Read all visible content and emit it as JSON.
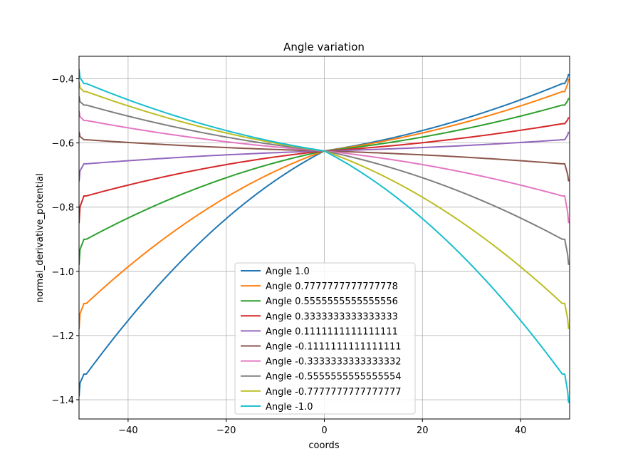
{
  "chart_data": {
    "type": "line",
    "title": "Angle variation",
    "xlabel": "coords",
    "ylabel": "normal_derivative_potential",
    "xlim": [
      -50,
      50
    ],
    "ylim": [
      -1.46,
      -0.33
    ],
    "xticks": [
      -40,
      -20,
      0,
      20,
      40
    ],
    "xtick_labels": [
      "−40",
      "−20",
      "0",
      "20",
      "40"
    ],
    "yticks": [
      -1.4,
      -1.2,
      -1.0,
      -0.8,
      -0.6,
      -0.4
    ],
    "ytick_labels": [
      "−1.4",
      "−1.2",
      "−1.0",
      "−0.8",
      "−0.6",
      "−0.4"
    ],
    "grid": true,
    "legend_position": "lower-center",
    "center": [
      0,
      -0.625
    ],
    "series": [
      {
        "name": "Angle 1.0",
        "color": "#1f77b4",
        "left_plateau": -1.32,
        "right_plateau": -0.415,
        "left_spike": -1.39,
        "right_spike": -0.385
      },
      {
        "name": "Angle 0.7777777777777778",
        "color": "#ff7f0e",
        "left_plateau": -1.1,
        "right_plateau": -0.44,
        "left_spike": -1.18,
        "right_spike": -0.4
      },
      {
        "name": "Angle 0.5555555555555556",
        "color": "#2ca02c",
        "left_plateau": -0.9,
        "right_plateau": -0.482,
        "left_spike": -0.98,
        "right_spike": -0.46
      },
      {
        "name": "Angle 0.3333333333333333",
        "color": "#d62728",
        "left_plateau": -0.765,
        "right_plateau": -0.54,
        "left_spike": -0.85,
        "right_spike": -0.52
      },
      {
        "name": "Angle 0.1111111111111111",
        "color": "#9467bd",
        "left_plateau": -0.665,
        "right_plateau": -0.59,
        "left_spike": -0.72,
        "right_spike": -0.565
      },
      {
        "name": "Angle -0.1111111111111111",
        "color": "#8c564b",
        "left_plateau": -0.59,
        "right_plateau": -0.665,
        "left_spike": -0.565,
        "right_spike": -0.72
      },
      {
        "name": "Angle -0.3333333333333332",
        "color": "#e377c2",
        "left_plateau": -0.53,
        "right_plateau": -0.765,
        "left_spike": -0.5,
        "right_spike": -0.85
      },
      {
        "name": "Angle -0.5555555555555554",
        "color": "#7f7f7f",
        "left_plateau": -0.482,
        "right_plateau": -0.9,
        "left_spike": -0.455,
        "right_spike": -0.98
      },
      {
        "name": "Angle -0.7777777777777777",
        "color": "#bcbd22",
        "left_plateau": -0.44,
        "right_plateau": -1.1,
        "left_spike": -0.41,
        "right_spike": -1.18
      },
      {
        "name": "Angle -1.0",
        "color": "#17becf",
        "left_plateau": -0.415,
        "right_plateau": -1.32,
        "left_spike": -0.37,
        "right_spike": -1.41
      }
    ]
  }
}
